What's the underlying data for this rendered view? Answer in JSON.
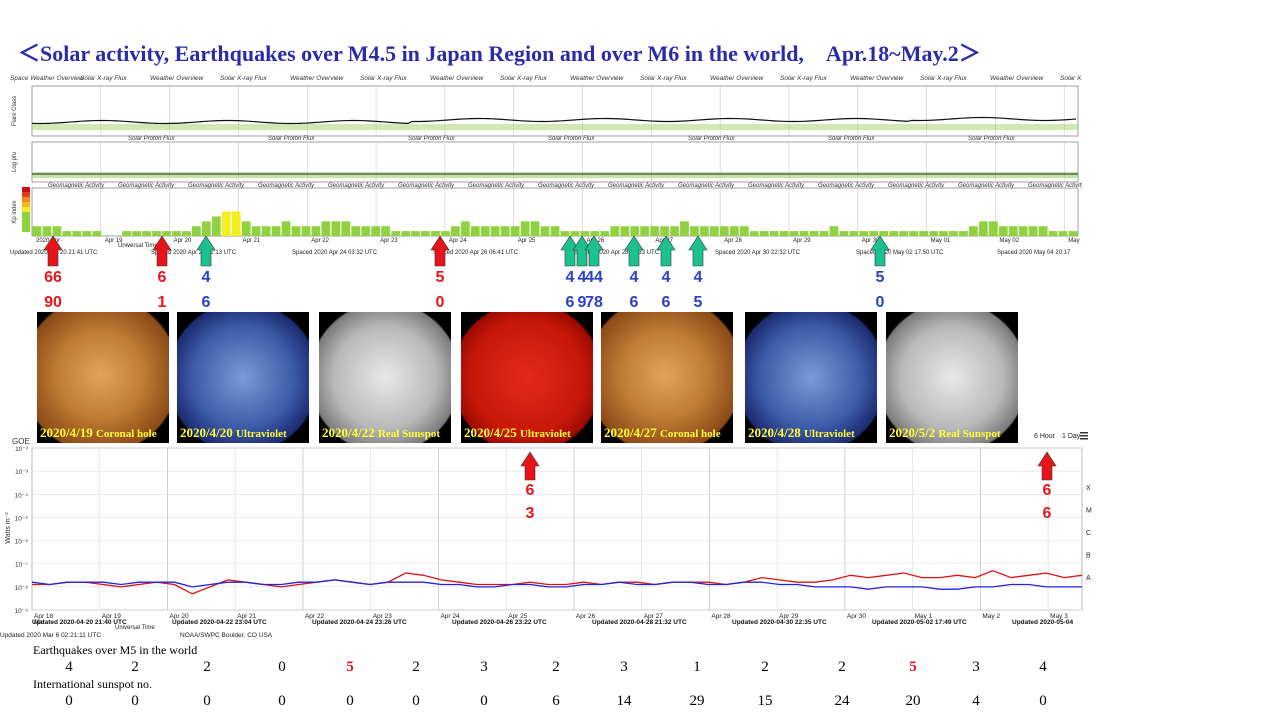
{
  "title": "＜Solar activity, Earthquakes over M4.5 in Japan Region and over M6 in the world,　Apr.18~May.2＞",
  "top_chart": {
    "header_labels": [
      "Space Weather Overview",
      "Solar X-ray Flux",
      "Weather Overview",
      "Solar X-ray Flux",
      "Weather Overview",
      "Solar X-ray Flux",
      "Weather Overview",
      "Solar X-ray Flux",
      "Weather Overview",
      "Solar X-ray Flux",
      "Weather Overview",
      "Solar X-ray Flux",
      "Weather Overview",
      "Solar X-ray Flux",
      "Weather Overview",
      "Solar X-ray Flux"
    ],
    "proton_labels": [
      "Solar Proton Flux",
      "Solar Proton Flux",
      "Solar Proton Flux",
      "Solar Proton Flux",
      "Solar Proton Flux",
      "Solar Proton Flux",
      "Solar Proton Flux",
      "Solar Proton Flux"
    ],
    "geomag_labels": [
      "Geomagnetic Activity",
      "Geomagnetic Activity",
      "Geomagnetic Activity",
      "Geomagnetic Activity",
      "Geomagnetic Activity",
      "Geomagnetic Activity",
      "Geomagnetic Activity",
      "Geomagnetic Activity",
      "Geomagnetic Activity",
      "Geomagnetic Activity",
      "Geomagnetic Activity",
      "Geomagnetic Activity",
      "Geomagnetic Activity",
      "Geomagnetic Activity",
      "Geomagnetic Activity",
      "Geomagnetic Activity"
    ],
    "ylabels": [
      "Flare Class",
      "Log pfu",
      "Kp index"
    ],
    "date_ticks": [
      "2020 Apr",
      "Apr 19",
      "Apr 20",
      "Apr 21",
      "Apr 22",
      "Apr 23",
      "Apr 24",
      "Apr 25",
      "Apr 26",
      "Apr 27",
      "Apr 28",
      "Apr 29",
      "Apr 30",
      "May 01",
      "May 02",
      "May"
    ],
    "universal_time": "Universal Time",
    "updated_labels": [
      "Updated 2020 Apr 20 21:41 UTC",
      "Spaced 2020 Apr 22 02:13 UTC",
      "Spaced 2020 Apr 24 03:32 UTC",
      "Spaced 2020 Apr 26 06:41 UTC",
      "Spaced 2020 Apr 28 21:33 UTC",
      "Spaced 2020 Apr 30 22:32 UTC",
      "Spaced 2020 May 02 17:50 UTC",
      "Spaced 2020 May 04 20:17"
    ]
  },
  "chart_data": [
    {
      "type": "bar",
      "title": "Geomagnetic Activity",
      "ylabel": "Kp index",
      "ylim": [
        0,
        9
      ],
      "values": [
        2,
        2,
        2,
        1,
        1,
        1,
        1,
        0,
        0,
        1,
        1,
        1,
        1,
        1,
        1,
        1,
        2,
        3,
        4,
        5,
        5,
        3,
        2,
        2,
        2,
        3,
        2,
        2,
        2,
        3,
        3,
        3,
        2,
        2,
        2,
        2,
        1,
        1,
        1,
        1,
        1,
        1,
        2,
        3,
        2,
        2,
        2,
        2,
        2,
        3,
        3,
        2,
        2,
        1,
        1,
        1,
        1,
        1,
        2,
        2,
        2,
        2,
        2,
        2,
        2,
        3,
        2,
        2,
        2,
        2,
        2,
        2,
        1,
        1,
        1,
        1,
        1,
        1,
        1,
        1,
        2,
        1,
        1,
        1,
        1,
        1,
        1,
        1,
        1,
        1,
        1,
        1,
        1,
        1,
        2,
        3,
        3,
        2,
        2,
        2,
        2,
        2,
        1,
        1,
        1
      ],
      "colors": {
        "quiet": "#8fd13e",
        "active": "#f2ef1f",
        "storm": "#e23b1e"
      }
    },
    {
      "type": "line",
      "title": "GOES X-ray Flux",
      "ylabel": "Watts m⁻²",
      "y_scale": "log",
      "ylim": [
        1e-09,
        0.01
      ],
      "y_tick_labels": [
        "10⁻²",
        "10⁻³",
        "10⁻⁴",
        "10⁻⁵",
        "10⁻⁶",
        "10⁻⁷",
        "10⁻⁸",
        "10⁻⁹"
      ],
      "class_labels": [
        "X",
        "M",
        "C",
        "B",
        "A"
      ],
      "x_tick_labels": [
        "Apr 18",
        "Apr 19",
        "Apr 20",
        "Apr 21",
        "Apr 22",
        "Apr 23",
        "Apr 24",
        "Apr 25",
        "Apr 26",
        "Apr 27",
        "Apr 28",
        "Apr 29",
        "Apr 30",
        "May 1",
        "May 2",
        "May 3"
      ],
      "series": [
        {
          "color": "#e01010",
          "values": [
            -7.9,
            -7.9,
            -7.8,
            -7.8,
            -7.9,
            -8.0,
            -7.9,
            -7.8,
            -7.9,
            -8.3,
            -8.0,
            -7.7,
            -7.8,
            -7.9,
            -8.0,
            -7.9,
            -7.8,
            -7.7,
            -7.8,
            -7.9,
            -7.8,
            -7.4,
            -7.5,
            -7.7,
            -7.8,
            -7.9,
            -7.9,
            -7.9,
            -7.8,
            -7.9,
            -7.9,
            -7.8,
            -7.9,
            -7.8,
            -7.8,
            -7.9,
            -7.8,
            -7.8,
            -7.8,
            -7.9,
            -7.8,
            -7.6,
            -7.7,
            -7.8,
            -7.8,
            -7.7,
            -7.5,
            -7.6,
            -7.5,
            -7.4,
            -7.6,
            -7.6,
            -7.5,
            -7.6,
            -7.3,
            -7.6,
            -7.5,
            -7.4,
            -7.6,
            -7.5
          ]
        },
        {
          "color": "#2222dd",
          "values": [
            -7.8,
            -7.9,
            -7.8,
            -7.8,
            -7.8,
            -7.9,
            -7.8,
            -7.8,
            -7.8,
            -8.0,
            -7.9,
            -7.8,
            -7.8,
            -7.9,
            -7.9,
            -7.8,
            -7.8,
            -7.7,
            -7.8,
            -7.9,
            -7.8,
            -7.8,
            -7.8,
            -7.9,
            -7.9,
            -8.0,
            -8.0,
            -7.9,
            -7.9,
            -8.0,
            -8.0,
            -7.9,
            -7.9,
            -7.8,
            -7.9,
            -7.9,
            -7.8,
            -7.8,
            -7.9,
            -7.9,
            -7.8,
            -7.8,
            -7.9,
            -7.9,
            -8.0,
            -8.0,
            -8.0,
            -8.1,
            -8.0,
            -8.0,
            -8.0,
            -8.1,
            -8.1,
            -8.0,
            -8.0,
            -7.9,
            -7.9,
            -8.0,
            -8.0,
            -8.0
          ]
        }
      ],
      "updated_labels": [
        "Updated 2020-04-20 21:40 UTC",
        "Updated 2020-04-22 23:04 UTC",
        "Updated 2020-04-24 23:26 UTC",
        "Updated 2020-04-26 23:22 UTC",
        "Updated 2020-04-28 21:32 UTC",
        "Updated 2020-04-30 22:35 UTC",
        "Updated 2020-05-02 17:49 UTC",
        "Updated 2020-05-04"
      ]
    }
  ],
  "xray_chart": {
    "goes_label": "GOE",
    "controls": [
      "6 Hour",
      "1 Day"
    ],
    "footer_left": "Updated 2020 Mar  6 02:21:11 UTC",
    "footer_mid": "NOAA/SWPC Boulder, CO USA",
    "universal_time": "Universal Time",
    "mar_label": "Mar"
  },
  "arrows_top": [
    {
      "color": "red",
      "top": "66",
      "bottom": "90"
    },
    {
      "color": "red",
      "top": "6",
      "bottom": "1"
    },
    {
      "color": "green",
      "top": "4",
      "bottom": "6"
    },
    {
      "color": "red",
      "top": "5",
      "bottom": "0"
    },
    {
      "color": "green",
      "top": "4",
      "bottom": "6"
    },
    {
      "color": "green",
      "top": "4",
      "bottom": "9"
    },
    {
      "color": "green",
      "top": "44",
      "bottom": "78"
    },
    {
      "color": "green",
      "top": "4",
      "bottom": "6"
    },
    {
      "color": "green",
      "top": "4",
      "bottom": "6"
    },
    {
      "color": "green",
      "top": "4",
      "bottom": "5"
    },
    {
      "color": "green",
      "top": "5",
      "bottom": "0"
    }
  ],
  "arrows_bottom": [
    {
      "top": "6",
      "bottom": "3"
    },
    {
      "top": "6",
      "bottom": "6"
    }
  ],
  "sun_panels": [
    {
      "date": "2020/4/19",
      "type": "Coronal hole",
      "style": "orange"
    },
    {
      "date": "2020/4/20",
      "type": "Ultraviolet",
      "style": "blue"
    },
    {
      "date": "2020/4/22",
      "type": "Real Sunspot",
      "style": "gray"
    },
    {
      "date": "2020/4/25",
      "type": "Ultraviolet",
      "style": "red"
    },
    {
      "date": "2020/4/27",
      "type": "Coronal hole",
      "style": "orange"
    },
    {
      "date": "2020/4/28",
      "type": "Ultraviolet",
      "style": "blue"
    },
    {
      "date": "2020/5/2",
      "type": "Real Sunspot",
      "style": "gray"
    }
  ],
  "table": {
    "earthquakes_label": "Earthquakes over M5 in the world",
    "earthquakes": [
      {
        "value": "4",
        "highlight": false
      },
      {
        "value": "2",
        "highlight": false
      },
      {
        "value": "2",
        "highlight": false
      },
      {
        "value": "0",
        "highlight": false
      },
      {
        "value": "5",
        "highlight": true
      },
      {
        "value": "2",
        "highlight": false
      },
      {
        "value": "3",
        "highlight": false
      },
      {
        "value": "2",
        "highlight": false
      },
      {
        "value": "3",
        "highlight": false
      },
      {
        "value": "1",
        "highlight": false
      },
      {
        "value": "2",
        "highlight": false
      },
      {
        "value": "2",
        "highlight": false
      },
      {
        "value": "5",
        "highlight": true
      },
      {
        "value": "3",
        "highlight": false
      },
      {
        "value": "4",
        "highlight": false
      }
    ],
    "sunspot_label": "International sunspot no.",
    "sunspots": [
      "0",
      "0",
      "0",
      "0",
      "0",
      "0",
      "0",
      "6",
      "14",
      "29",
      "15",
      "24",
      "20",
      "4",
      "0"
    ]
  }
}
